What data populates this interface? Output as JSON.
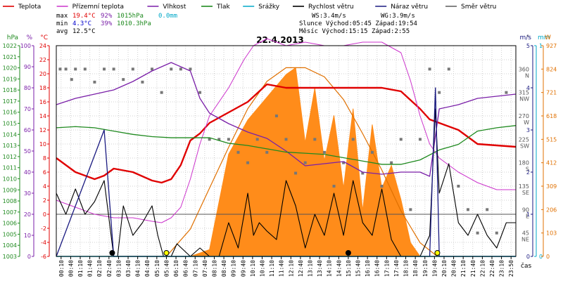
{
  "legend": [
    {
      "label": "Teplota",
      "color": "#e00000"
    },
    {
      "label": "Přízemní teplota",
      "color": "#cc33cc"
    },
    {
      "label": "Vlhkost",
      "color": "#7a1fa8"
    },
    {
      "label": "Tlak",
      "color": "#1f8a1f"
    },
    {
      "label": "Srážky",
      "color": "#00a8c8"
    },
    {
      "label": "Rychlost větru",
      "color": "#000000"
    },
    {
      "label": "Náraz větru",
      "color": "#1a1a80"
    },
    {
      "label": "Směr větru",
      "color": "#666666"
    }
  ],
  "stats": {
    "max_label": "max",
    "max_temp": "19.4°C",
    "max_hum": "92%",
    "max_press": "1015hPa",
    "max_rain": "0.0mm",
    "min_label": "min",
    "min_temp": "4.3°C",
    "min_hum": "39%",
    "min_press": "1010.3hPa",
    "avg_label": "avg",
    "avg_temp": "12.5°C",
    "ws": "WS:3.4m/s",
    "wg": "WG:3.9m/s",
    "sun": "Slunce Východ:05:45   Západ:19:54",
    "moon": "Měsíc  Východ:15:15   Západ:2:55"
  },
  "chart_data": {
    "title": "22.4.2013",
    "type": "line",
    "x_axis_label": "čas",
    "x_ticks": [
      "00:10",
      "00:40",
      "01:10",
      "01:40",
      "02:10",
      "02:40",
      "03:10",
      "03:40",
      "04:10",
      "04:40",
      "05:10",
      "05:40",
      "06:10",
      "06:40",
      "07:10",
      "07:40",
      "08:10",
      "08:40",
      "09:10",
      "09:40",
      "10:10",
      "10:40",
      "11:10",
      "11:40",
      "12:10",
      "12:40",
      "13:10",
      "13:40",
      "14:10",
      "14:40",
      "15:10",
      "15:40",
      "16:10",
      "16:40",
      "17:10",
      "17:40",
      "18:10",
      "18:40",
      "19:10",
      "19:40",
      "20:10",
      "20:40",
      "21:10",
      "21:40",
      "22:10",
      "22:40",
      "23:10",
      "23:50"
    ],
    "axes": {
      "hpa_label": "hPa",
      "hpa_ticks": [
        "1022",
        "1021",
        "1020",
        "1019",
        "1018",
        "1017",
        "1016",
        "1015",
        "1014",
        "1013",
        "1012",
        "1011",
        "1010",
        "1009",
        "1008",
        "1007",
        "1006",
        "1005",
        "1004",
        "1003"
      ],
      "pct_label": "%",
      "pct_ticks": [
        "100",
        "90",
        "80",
        "70",
        "60",
        "50",
        "40",
        "30",
        "20",
        "10",
        "0"
      ],
      "temp_label": "°C",
      "temp_ticks": [
        "24",
        "22",
        "20",
        "18",
        "16",
        "14",
        "12",
        "10",
        "8",
        "6",
        "4",
        "2",
        "0",
        "-2",
        "-4",
        "-6"
      ],
      "dir_label": "°",
      "dir_ticks": [
        {
          "v": "360",
          "d": "N"
        },
        {
          "v": "315",
          "d": "NW"
        },
        {
          "v": "270",
          "d": "W"
        },
        {
          "v": "225",
          "d": "SW"
        },
        {
          "v": "180",
          "d": "S"
        },
        {
          "v": "135",
          "d": "SE"
        },
        {
          "v": "90",
          "d": "E"
        },
        {
          "v": "45",
          "d": "NE"
        }
      ],
      "ms_label": "m/s",
      "ms_ticks": [
        "5",
        "4",
        "3",
        "2",
        "1",
        "0"
      ],
      "mm_label": "mm",
      "mm_ticks": [
        "1",
        "0"
      ],
      "wm2_label": "W",
      "wm2_ticks": [
        "927",
        "824",
        "721",
        "618",
        "515",
        "412",
        "309",
        "206",
        "103",
        "0"
      ]
    },
    "series": [
      {
        "name": "Teplota",
        "unit": "°C",
        "x": [
          0,
          1,
          2,
          2.5,
          3,
          4,
          5,
          5.5,
          6,
          6.5,
          7,
          7.5,
          8,
          9,
          10,
          11,
          12,
          13,
          14,
          15,
          16,
          17,
          18,
          19,
          19.5,
          20,
          21,
          22,
          23,
          24
        ],
        "y": [
          8.0,
          6.0,
          5.0,
          5.5,
          6.5,
          6.0,
          4.8,
          4.5,
          5.0,
          7.0,
          10.5,
          11.5,
          13.0,
          14.5,
          16.0,
          18.5,
          18.0,
          18.0,
          18.0,
          18.0,
          18.0,
          18.0,
          17.5,
          15.0,
          13.5,
          13.0,
          12.0,
          10.0,
          9.8,
          9.6
        ]
      },
      {
        "name": "Přízemní teplota",
        "unit": "°C",
        "x": [
          0,
          1,
          2,
          3,
          4,
          5,
          5.5,
          6,
          6.5,
          7,
          7.5,
          8,
          9,
          9.8,
          10.3,
          11,
          12,
          13,
          14,
          15,
          16,
          17,
          18,
          18.5,
          19,
          19.5,
          20,
          21,
          22,
          23,
          24
        ],
        "y": [
          2.0,
          1.0,
          0.0,
          -0.5,
          -0.5,
          -1.0,
          -1.2,
          -0.5,
          1.0,
          5.0,
          10.0,
          14.0,
          18.0,
          22.0,
          24.0,
          25.0,
          24.0,
          24.5,
          24.0,
          24.0,
          24.5,
          24.5,
          23.0,
          19.0,
          14.0,
          10.0,
          8.0,
          6.0,
          4.5,
          3.5,
          3.5
        ]
      },
      {
        "name": "Vlhkost",
        "unit": "%",
        "x": [
          0,
          1,
          2,
          3,
          4,
          5,
          6,
          6.5,
          7,
          7.5,
          8,
          9,
          10,
          11,
          12,
          13,
          14,
          15,
          16,
          17,
          18,
          19,
          19.5,
          20,
          21,
          22,
          23,
          24
        ],
        "y": [
          72,
          75,
          77,
          79,
          83,
          88,
          92,
          90,
          88,
          75,
          68,
          63,
          59,
          56,
          50,
          43,
          44,
          45,
          40,
          39,
          40,
          40,
          38,
          70,
          72,
          75,
          76,
          77
        ]
      },
      {
        "name": "Tlak",
        "unit": "hPa",
        "x": [
          0,
          1,
          2,
          3,
          4,
          5,
          6,
          7,
          8,
          9,
          10,
          11,
          12,
          13,
          14,
          15,
          16,
          17,
          18,
          19,
          20,
          21,
          22,
          23,
          24
        ],
        "y": [
          1014.6,
          1014.7,
          1014.6,
          1014.3,
          1014.0,
          1013.8,
          1013.7,
          1013.7,
          1013.7,
          1013.2,
          1013.0,
          1012.7,
          1012.4,
          1012.3,
          1012.2,
          1011.9,
          1011.6,
          1011.3,
          1011.3,
          1011.7,
          1012.6,
          1013.1,
          1014.3,
          1014.6,
          1014.8
        ]
      },
      {
        "name": "Rychlost větru",
        "unit": "m/s",
        "x": [
          0,
          0.5,
          1,
          1.5,
          2,
          2.5,
          3,
          3.2,
          3.5,
          4,
          4.5,
          5,
          5.3,
          5.6,
          6,
          6.3,
          7,
          7.5,
          8,
          8.5,
          9,
          9.5,
          10,
          10.3,
          10.6,
          11,
          11.5,
          12,
          12.5,
          13,
          13.5,
          14,
          14.5,
          15,
          15.5,
          16,
          16.5,
          17,
          17.5,
          18,
          18.5,
          19,
          19.5,
          19.8,
          20,
          20.5,
          21,
          21.5,
          22,
          22.5,
          23,
          23.5,
          24
        ],
        "y": [
          1.5,
          1.0,
          1.6,
          1.0,
          1.3,
          1.8,
          0.0,
          0.0,
          1.2,
          0.5,
          0.8,
          1.2,
          0.5,
          0.0,
          0.0,
          0.3,
          0.0,
          0.2,
          0.0,
          0.0,
          0.8,
          0.2,
          1.5,
          0.5,
          0.8,
          0.6,
          0.4,
          1.8,
          1.2,
          0.2,
          1.0,
          0.5,
          1.5,
          0.5,
          1.8,
          0.8,
          0.5,
          1.6,
          0.4,
          0.0,
          0.0,
          0.0,
          0.5,
          3.5,
          1.5,
          2.2,
          0.8,
          0.5,
          1.0,
          0.5,
          0.2,
          0.8,
          0.8
        ]
      },
      {
        "name": "Náraz větru",
        "unit": "m/s",
        "x": [
          0,
          2.5,
          3,
          3.5,
          19.5,
          19.8,
          20,
          20.5,
          24
        ],
        "y": [
          0,
          3.0,
          0,
          0,
          0,
          4.0,
          0,
          0,
          0
        ]
      },
      {
        "name": "Srážky",
        "unit": "mm",
        "x": [
          0,
          24
        ],
        "y": [
          0,
          0
        ]
      }
    ],
    "solar_radiation": {
      "unit": "W/m²",
      "x": [
        0,
        7,
        8,
        9,
        10,
        11,
        12,
        12.5,
        13,
        13.5,
        14,
        14.5,
        15,
        15.5,
        16,
        16.5,
        17,
        17.5,
        18,
        18.5,
        19,
        24
      ],
      "y": [
        0,
        0,
        30,
        450,
        600,
        700,
        800,
        830,
        500,
        740,
        420,
        620,
        300,
        650,
        200,
        580,
        300,
        400,
        250,
        60,
        0,
        0
      ]
    },
    "clear_sky_radiation": {
      "unit": "W/m²",
      "x": [
        5.75,
        7,
        8,
        9,
        10,
        11,
        12,
        13,
        14,
        15,
        16,
        17,
        18,
        19,
        19.9
      ],
      "y": [
        0,
        120,
        300,
        480,
        650,
        770,
        830,
        830,
        790,
        690,
        540,
        380,
        200,
        60,
        0
      ]
    },
    "wind_direction": {
      "unit": "°",
      "x": [
        0.2,
        0.5,
        0.8,
        1.0,
        1.5,
        2.0,
        2.5,
        3.0,
        3.5,
        4.0,
        4.5,
        5.0,
        5.5,
        6.0,
        6.5,
        7.0,
        7.5,
        8.0,
        8.5,
        9.0,
        9.5,
        10.0,
        10.5,
        11.0,
        11.5,
        12.0,
        12.5,
        13.0,
        13.5,
        14.0,
        14.5,
        15.0,
        15.5,
        16.0,
        16.5,
        17.0,
        17.5,
        18.0,
        18.5,
        19.0,
        19.5,
        20.0,
        20.5,
        21.0,
        21.5,
        22.0,
        22.5,
        23.0,
        23.5
      ],
      "y": [
        360,
        360,
        340,
        360,
        360,
        335,
        360,
        360,
        340,
        360,
        335,
        360,
        315,
        360,
        360,
        360,
        315,
        225,
        225,
        225,
        200,
        180,
        225,
        200,
        270,
        225,
        160,
        180,
        225,
        200,
        135,
        180,
        225,
        160,
        200,
        135,
        180,
        225,
        90,
        225,
        360,
        315,
        360,
        135,
        90,
        45,
        90,
        45,
        315
      ]
    },
    "markers": [
      {
        "name": "Východ Měsíce",
        "x": 15.25
      },
      {
        "name": "Západ Měsíce",
        "x": 2.92
      },
      {
        "name": "Východ Slunce",
        "x": 5.75
      },
      {
        "name": "Západ Slunce",
        "x": 19.9
      }
    ]
  }
}
